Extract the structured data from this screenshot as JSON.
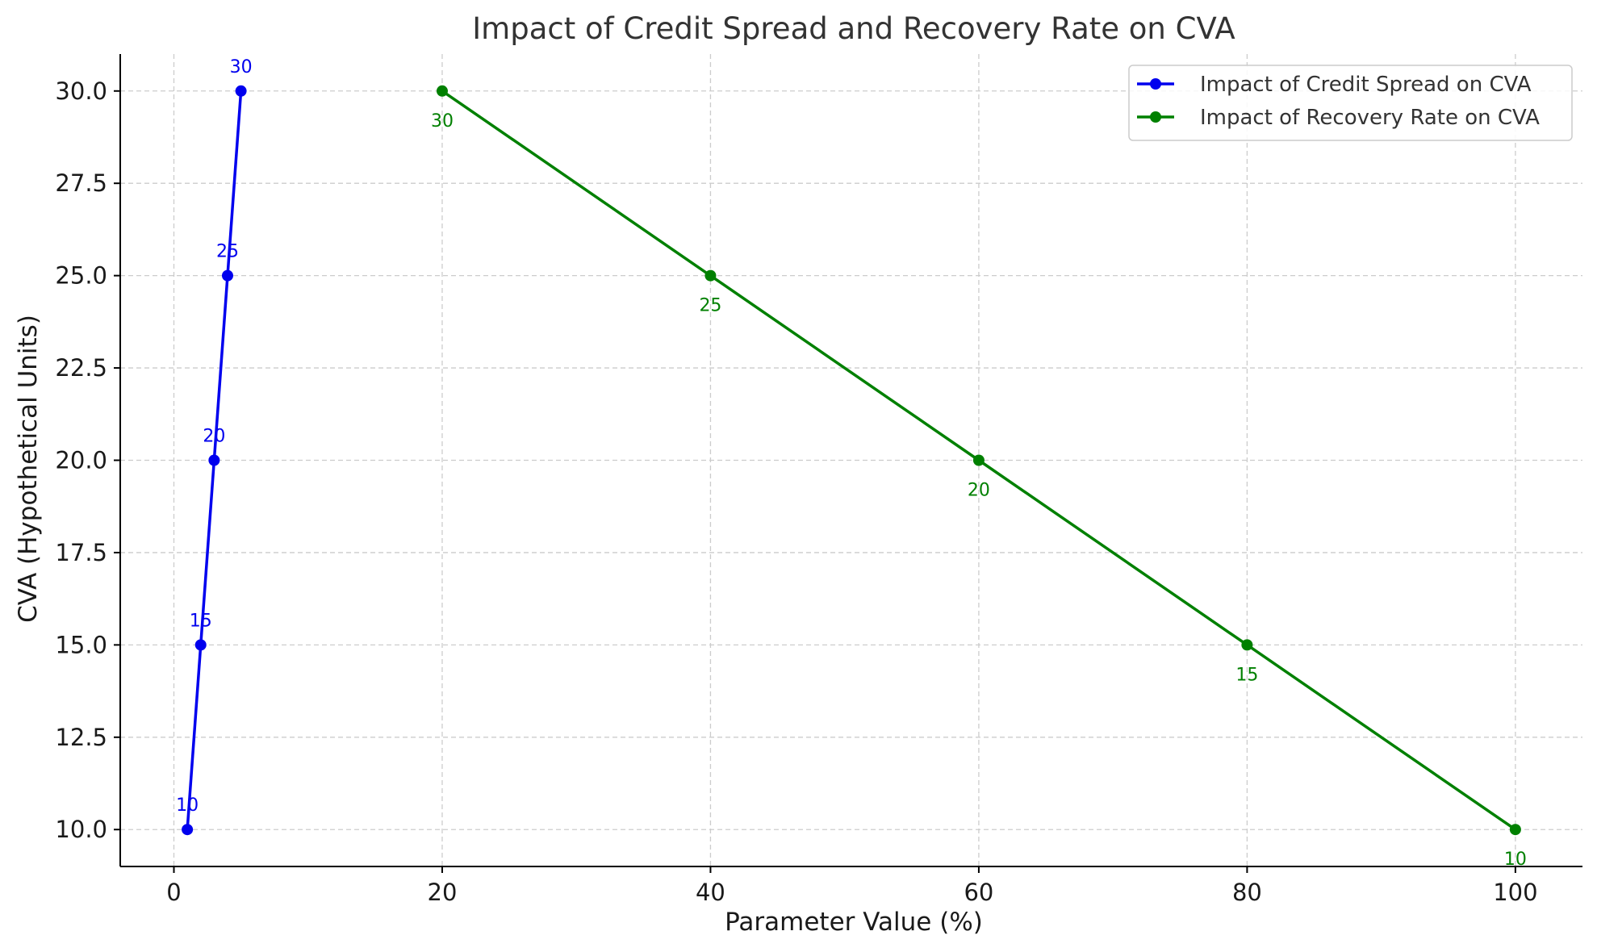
{
  "chart_data": {
    "type": "line",
    "title": "Impact of Credit Spread and Recovery Rate on CVA",
    "xlabel": "Parameter Value (%)",
    "ylabel": "CVA (Hypothetical Units)",
    "xlim": [
      -4,
      105
    ],
    "ylim": [
      9,
      31
    ],
    "xticks": [
      0,
      20,
      40,
      60,
      80,
      100
    ],
    "xtick_labels": [
      "0",
      "20",
      "40",
      "60",
      "80",
      "100"
    ],
    "yticks": [
      10.0,
      12.5,
      15.0,
      17.5,
      20.0,
      22.5,
      25.0,
      27.5,
      30.0
    ],
    "ytick_labels": [
      "10.0",
      "12.5",
      "15.0",
      "17.5",
      "20.0",
      "22.5",
      "25.0",
      "27.5",
      "30.0"
    ],
    "grid": true,
    "legend_position": "top-right",
    "series": [
      {
        "name": "Impact of Credit Spread on CVA",
        "color": "#0000ee",
        "label_position": "above",
        "x": [
          1,
          2,
          3,
          4,
          5
        ],
        "y": [
          10,
          15,
          20,
          25,
          30
        ],
        "labels": [
          "10",
          "15",
          "20",
          "25",
          "30"
        ]
      },
      {
        "name": "Impact of Recovery Rate on CVA",
        "color": "#008000",
        "label_position": "below",
        "x": [
          20,
          40,
          60,
          80,
          100
        ],
        "y": [
          30,
          25,
          20,
          15,
          10
        ],
        "labels": [
          "30",
          "25",
          "20",
          "15",
          "10"
        ]
      }
    ]
  }
}
